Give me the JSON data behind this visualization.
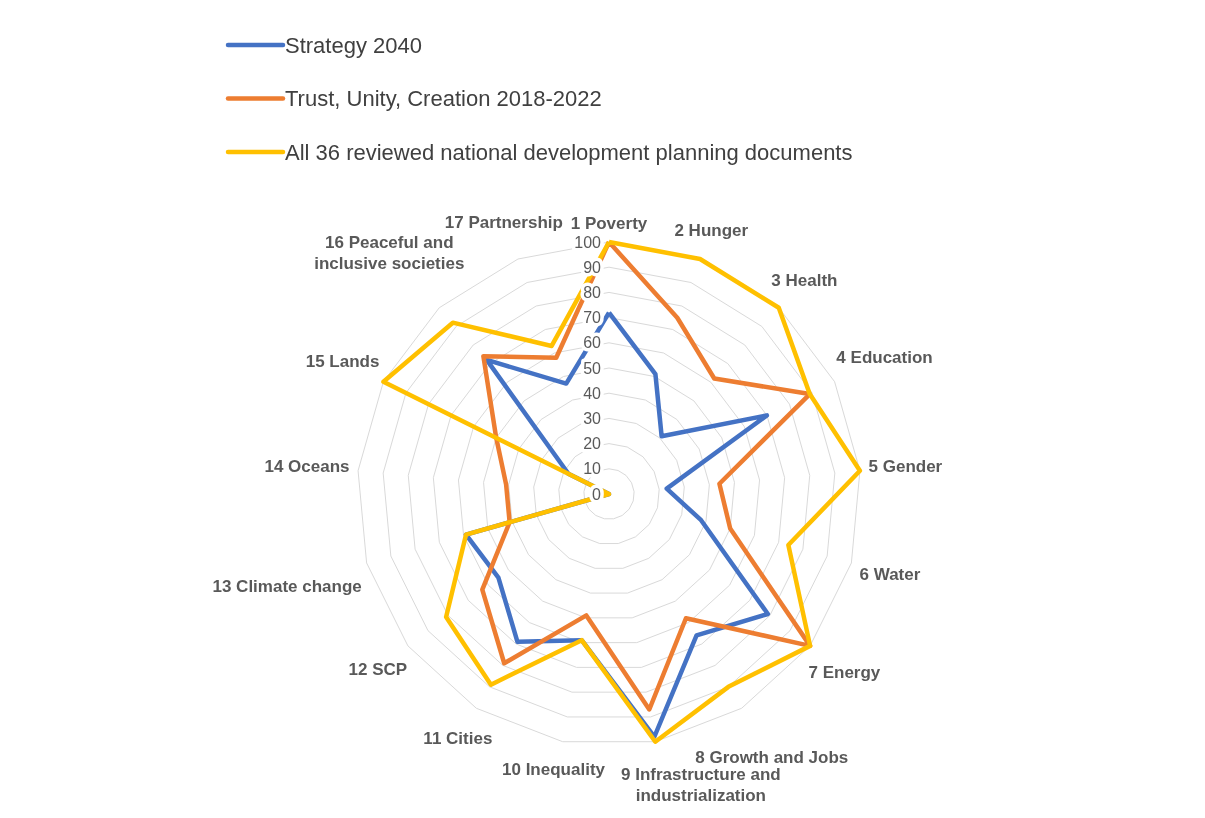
{
  "chart_data": {
    "type": "radar",
    "categories": [
      "1 Poverty",
      "2 Hunger",
      "3 Health",
      "4 Education",
      "5 Gender",
      "6 Water",
      "7 Energy",
      "8 Growth and Jobs",
      "9 Infrastructure and industrialization",
      "10 Inequality",
      "11 Cities",
      "12 SCP",
      "13 Climate change",
      "14 Oceans",
      "15 Lands",
      "16 Peaceful and inclusive societies",
      "17 Partnership"
    ],
    "series": [
      {
        "name": "Strategy 2040",
        "color": "#4472c4",
        "values": [
          72,
          51,
          31,
          70,
          23,
          38,
          79,
          66,
          98,
          59,
          69,
          55,
          59,
          0,
          18,
          72,
          47
        ]
      },
      {
        "name": "Trust, Unity, Creation 2018-2022",
        "color": "#ed7d31",
        "values": [
          100,
          75,
          62,
          89,
          44,
          50,
          100,
          58,
          87,
          49,
          79,
          63,
          41,
          41,
          50,
          74,
          58
        ]
      },
      {
        "name": "All 36 reviewed national development planning documents",
        "color": "#ffc000",
        "values": [
          100,
          100,
          100,
          89,
          100,
          74,
          100,
          90,
          100,
          59,
          89,
          81,
          59,
          0,
          100,
          92,
          63
        ]
      }
    ],
    "ylim": [
      0,
      100
    ],
    "yticks": [
      0,
      10,
      20,
      30,
      40,
      50,
      60,
      70,
      80,
      90,
      100
    ],
    "grid": true,
    "legend": "top left",
    "marker": "none",
    "line_style": "solid"
  }
}
